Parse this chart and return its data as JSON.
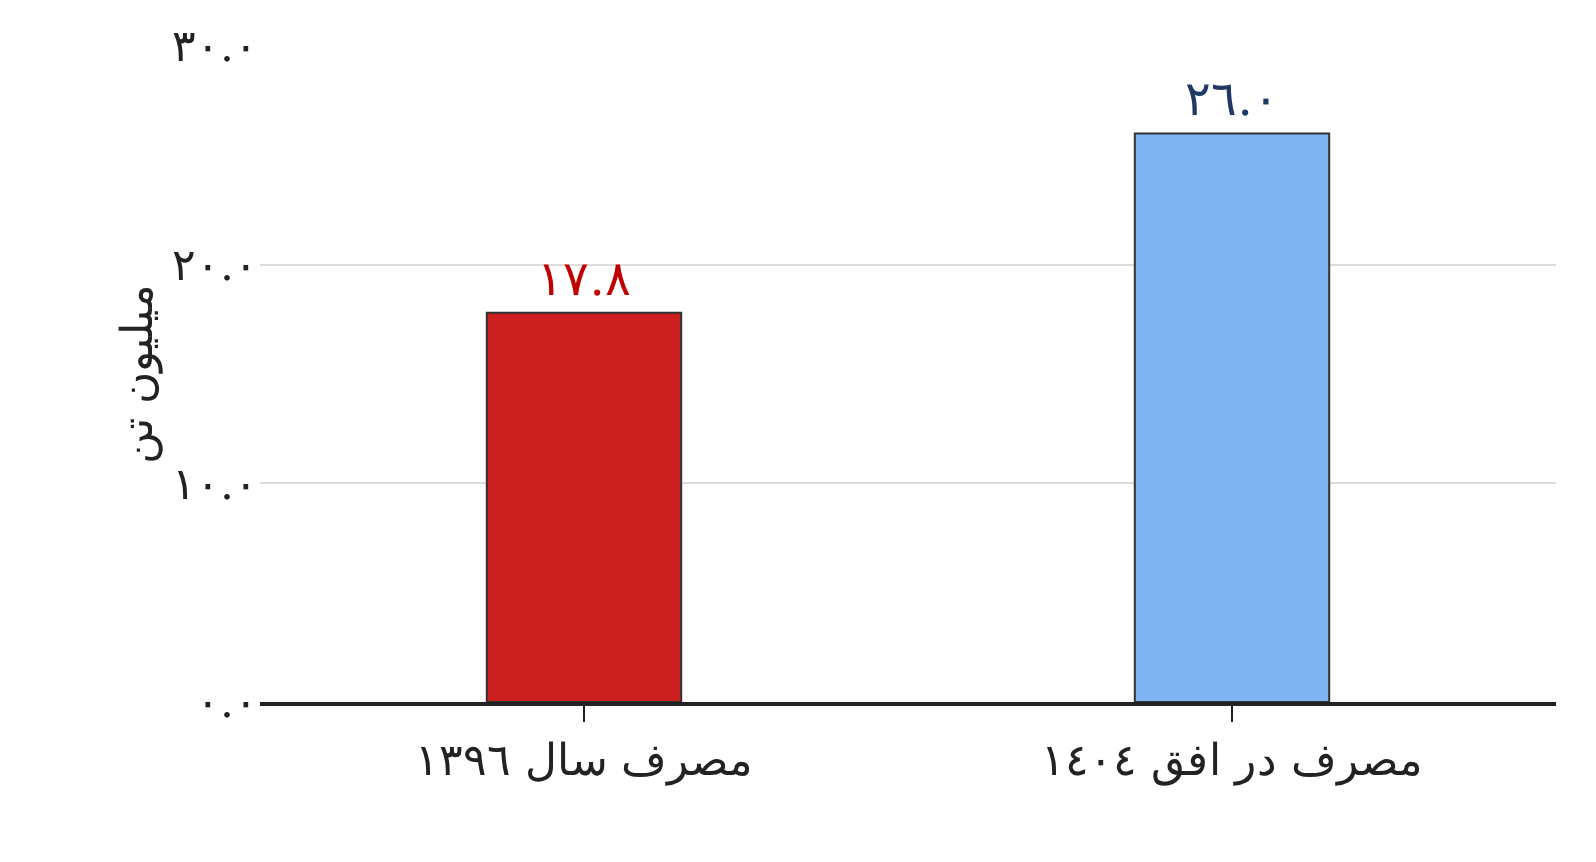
{
  "chart_data": {
    "type": "bar",
    "ylabel": "میلیون تن",
    "categories": [
      "مصرف سال ١٣٩٦",
      "مصرف در افق ١٤٠٤"
    ],
    "values": [
      17.8,
      26.0
    ],
    "colors": [
      "#cc2020",
      "#80b4f2"
    ],
    "value_labels": [
      "١٧.٨",
      "٢٦.٠"
    ],
    "ylim": [
      0,
      30
    ],
    "yticks": [
      {
        "value": 0,
        "label": "٠.٠"
      },
      {
        "value": 10,
        "label": "١٠.٠"
      },
      {
        "value": 20,
        "label": "٢٠.٠"
      },
      {
        "value": 30,
        "label": "٣٠.٠"
      }
    ],
    "grid": "y",
    "legend": false
  }
}
